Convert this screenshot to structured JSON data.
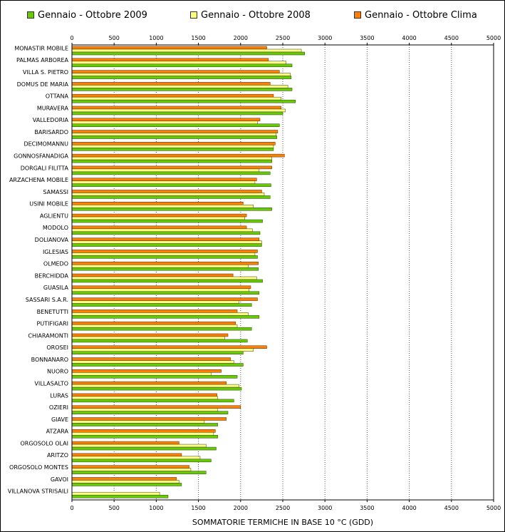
{
  "chart_data": {
    "type": "bar",
    "orientation": "horizontal",
    "xlabel": "SOMMATORIE TERMICHE IN BASE 10 °C (GDD)",
    "xlim": [
      0,
      5000
    ],
    "xticks": [
      0,
      500,
      1000,
      1500,
      2000,
      2500,
      3000,
      3500,
      4000,
      4500,
      5000
    ],
    "grid": "vertical dotted",
    "legend_position": "top",
    "categories": [
      "MONASTIR MOBILE",
      "PALMAS ARBOREA",
      "VILLA S. PIETRO",
      "DOMUS DE MARIA",
      "OTTANA",
      "MURAVERA",
      "VALLEDORIA",
      "BARISARDO",
      "DECIMOMANNU",
      "GONNOSFANADIGA",
      "DORGALI FILITTA",
      "ARZACHENA MOBILE",
      "SAMASSI",
      "USINI MOBILE",
      "AGLIENTU",
      "MODOLO",
      "DOLIANOVA",
      "IGLESIAS",
      "OLMEDO",
      "BERCHIDDA",
      "GUASILA",
      "SASSARI S.A.R.",
      "BENETUTTI",
      "PUTIFIGARI",
      "CHIARAMONTI",
      "OROSEI",
      "BONNANARO",
      "NUORO",
      "VILLASALTO",
      "LURAS",
      "OZIERI",
      "GIAVE",
      "ATZARA",
      "ORGOSOLO OLAI",
      "ARITZO",
      "ORGOSOLO MONTES",
      "GAVOI",
      "VILLANOVA STRISAILI"
    ],
    "series": [
      {
        "name": "Gennaio - Ottobre Clima",
        "color": "#ff8000",
        "values": [
          2310,
          2330,
          2460,
          2350,
          2390,
          2480,
          2230,
          2440,
          2410,
          2520,
          2370,
          2190,
          2250,
          2030,
          2070,
          2070,
          2220,
          2200,
          2210,
          1910,
          2120,
          2200,
          1960,
          1940,
          1850,
          2310,
          1880,
          1770,
          1830,
          1720,
          2000,
          1830,
          1700,
          1270,
          1300,
          1390,
          1240,
          0
        ]
      },
      {
        "name": "Gennaio - Ottobre 2008",
        "color": "#ffff80",
        "values": [
          2720,
          2540,
          2590,
          2560,
          2480,
          2530,
          2200,
          2420,
          2390,
          2370,
          2220,
          2170,
          2280,
          2150,
          2050,
          2140,
          2250,
          2170,
          2090,
          2190,
          2100,
          1980,
          2090,
          1960,
          1810,
          2150,
          1920,
          1650,
          1980,
          1730,
          1730,
          1570,
          1680,
          1590,
          1520,
          1410,
          1270,
          1040
        ]
      },
      {
        "name": "Gennaio - Ottobre 2009",
        "color": "#66cc00",
        "values": [
          2760,
          2610,
          2600,
          2610,
          2650,
          2500,
          2460,
          2430,
          2390,
          2370,
          2350,
          2360,
          2350,
          2370,
          2260,
          2230,
          2250,
          2200,
          2210,
          2260,
          2220,
          2130,
          2220,
          2130,
          2080,
          2030,
          2030,
          1960,
          2010,
          1920,
          1850,
          1730,
          1730,
          1710,
          1650,
          1590,
          1300,
          1140
        ]
      }
    ]
  },
  "legend": [
    {
      "label": "Gennaio - Ottobre 2009",
      "color": "#66cc00"
    },
    {
      "label": "Gennaio - Ottobre 2008",
      "color": "#ffff80"
    },
    {
      "label": "Gennaio - Ottobre Clima",
      "color": "#ff8000"
    }
  ]
}
